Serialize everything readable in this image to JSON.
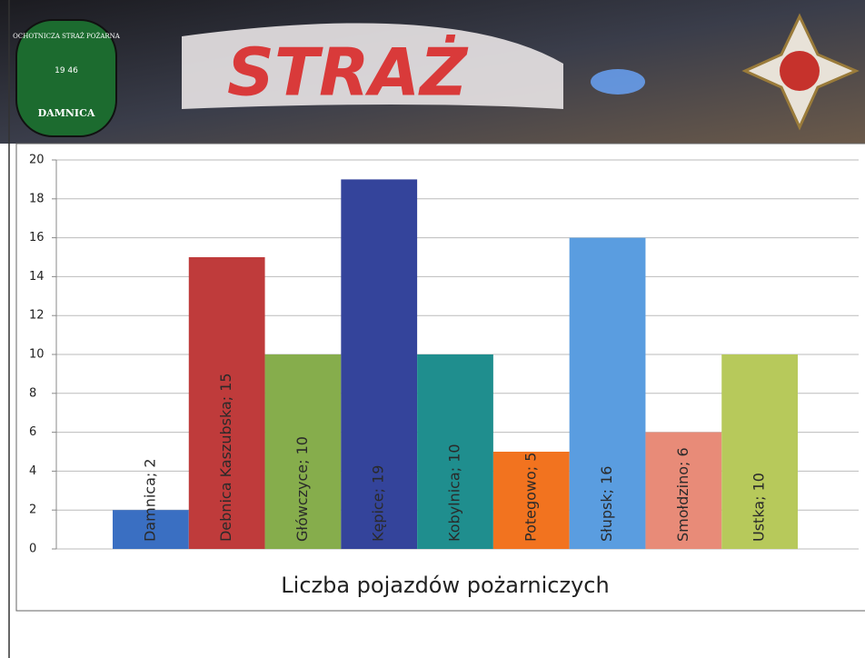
{
  "header": {
    "logo_arc": "OCHOTNICZA STRAŻ POŻARNA",
    "logo_year": "19 46",
    "logo_name": "DAMNICA",
    "banner_text": "STRAŻ"
  },
  "chart_data": {
    "type": "bar",
    "title": "Liczba pojazdów pożarniczych",
    "values": [
      2,
      15,
      10,
      19,
      10,
      5,
      16,
      6,
      10
    ],
    "value_labels": [
      "Damnica; 2",
      "Debnica Kaszubska; 15",
      "Główczyce; 10",
      "Kępice; 19",
      "Kobylnica; 10",
      "Potegowo; 5",
      "Słupsk; 16",
      "Smołdzino; 6",
      "Ustka; 10"
    ],
    "colors": [
      "#3a6fc2",
      "#bf3b3b",
      "#86ad4c",
      "#34449b",
      "#1f8e8e",
      "#f2731f",
      "#5a9de0",
      "#e88b78",
      "#b7c95b"
    ],
    "ylim": [
      0,
      20
    ],
    "yticks": [
      0,
      2,
      4,
      6,
      8,
      10,
      12,
      14,
      16,
      18,
      20
    ],
    "grid": true
  }
}
